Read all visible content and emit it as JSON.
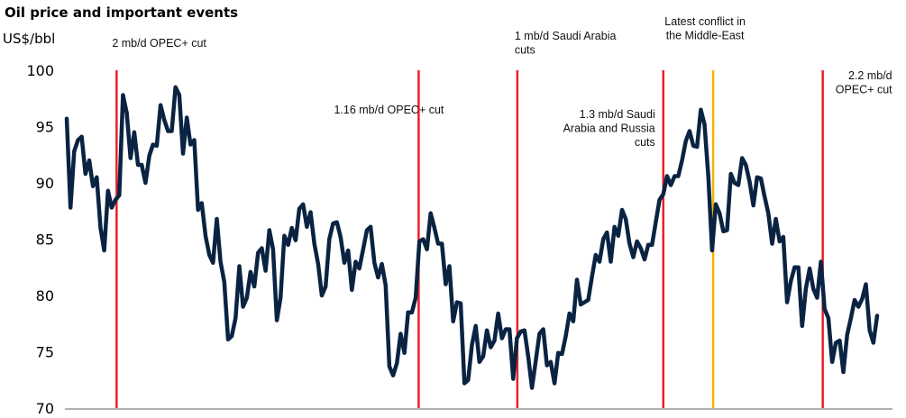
{
  "chart_data": {
    "type": "line",
    "title": "Oil price and important events",
    "ylabel": "US$/bbl",
    "xlabel": "",
    "ylim": [
      70,
      100
    ],
    "yticks": [
      70,
      75,
      80,
      85,
      90,
      95,
      100
    ],
    "grid": false,
    "legend": "none",
    "line_color": "#0a2342",
    "series": [
      {
        "values": [
          95.7,
          87.8,
          92.8,
          93.8,
          94.1,
          90.8,
          92.0,
          89.7,
          90.5,
          86.0,
          84.0,
          89.3,
          87.8,
          88.5,
          88.9,
          97.8,
          96.2,
          92.2,
          94.5,
          91.6,
          91.6,
          90.0,
          92.4,
          93.4,
          93.3,
          96.9,
          95.6,
          94.6,
          94.6,
          98.5,
          97.8,
          92.6,
          95.8,
          93.4,
          93.8,
          87.6,
          88.2,
          85.3,
          83.6,
          82.9,
          86.8,
          83.0,
          81.2,
          76.1,
          76.4,
          78.0,
          82.6,
          79.0,
          79.8,
          82.1,
          80.8,
          83.8,
          84.2,
          82.2,
          85.8,
          84.1,
          77.8,
          79.8,
          85.3,
          84.5,
          86.0,
          84.9,
          87.7,
          88.1,
          86.1,
          87.4,
          84.6,
          82.8,
          80.0,
          80.8,
          85.0,
          86.4,
          86.5,
          85.2,
          82.9,
          84.0,
          80.5,
          83.0,
          82.4,
          84.1,
          85.8,
          86.1,
          82.9,
          81.6,
          82.8,
          80.9,
          73.7,
          72.9,
          74.0,
          76.6,
          74.9,
          78.5,
          78.5,
          79.8,
          84.8,
          85.0,
          84.1,
          87.3,
          86.0,
          84.6,
          84.6,
          81.0,
          82.6,
          77.7,
          79.4,
          79.3,
          72.2,
          72.5,
          75.6,
          77.3,
          74.1,
          74.6,
          76.9,
          75.4,
          76.0,
          78.4,
          76.2,
          77.0,
          77.0,
          72.6,
          76.2,
          76.8,
          76.9,
          74.6,
          71.8,
          74.2,
          76.6,
          77.0,
          73.8,
          74.1,
          72.2,
          74.9,
          74.8,
          76.4,
          78.4,
          77.7,
          81.4,
          79.2,
          79.4,
          79.6,
          81.7,
          83.6,
          83.0,
          85.0,
          85.6,
          83.0,
          86.1,
          85.3,
          87.6,
          86.8,
          84.6,
          83.4,
          84.8,
          84.2,
          83.2,
          84.5,
          84.5,
          86.5,
          88.5,
          89.0,
          90.6,
          89.8,
          90.6,
          90.6,
          92.0,
          93.7,
          94.6,
          93.3,
          93.2,
          96.5,
          95.2,
          90.6,
          84.0,
          88.1,
          87.3,
          85.7,
          85.8,
          90.8,
          90.0,
          89.8,
          92.2,
          91.6,
          90.1,
          88.0,
          90.5,
          90.4,
          88.8,
          87.3,
          84.6,
          86.8,
          84.8,
          85.2,
          79.4,
          81.3,
          82.5,
          82.5,
          77.3,
          80.6,
          82.4,
          80.6,
          79.8,
          83.0,
          78.8,
          78.0,
          74.1,
          75.8,
          76.0,
          73.2,
          76.5,
          78.0,
          79.6,
          79.0,
          79.7,
          81.0,
          76.9,
          75.8,
          78.2
        ]
      }
    ],
    "events": [
      {
        "label": [
          "2 mb/d OPEC+ cut"
        ],
        "at_index": 13.3,
        "color": "#e8202a"
      },
      {
        "label": [
          "1.16 mb/d OPEC+ cut"
        ],
        "at_index": 93.8,
        "color": "#e8202a"
      },
      {
        "label": [
          "1 mb/d Saudi Arabia",
          "cuts"
        ],
        "at_index": 120.1,
        "color": "#e8202a"
      },
      {
        "label": [
          "1.3 mb/d Saudi",
          "Arabia and Russia",
          "cuts"
        ],
        "at_index": 159,
        "color": "#e8202a"
      },
      {
        "label": [
          "Latest conflict in",
          "the Middle-East"
        ],
        "at_index": 172.3,
        "color": "#f5b400"
      },
      {
        "label": [
          "2.2 mb/d",
          "OPEC+ cut"
        ],
        "at_index": 201.5,
        "color": "#e8202a"
      }
    ]
  }
}
